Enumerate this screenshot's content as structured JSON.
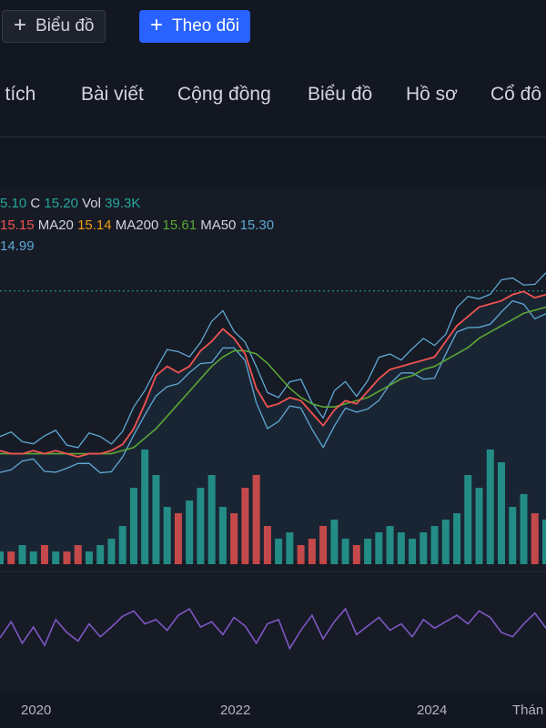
{
  "toolbar": {
    "chart_button": "Biểu đồ",
    "follow_button": "Theo dõi"
  },
  "nav": [
    "n tích",
    "Bài viết",
    "Cộng đồng",
    "Biểu đồ",
    "Hồ sơ",
    "Cổ đô"
  ],
  "legend": {
    "line1": {
      "open_tail": "5.10",
      "c_label": "C",
      "c_value": "15.20",
      "vol_label": "Vol",
      "vol_value": "39.3K"
    },
    "line2": {
      "ma_tail": "15.15",
      "ma20_label": "MA20",
      "ma20_value": "15.14",
      "ma200_label": "MA200",
      "ma200_value": "15.61",
      "ma50_label": "MA50",
      "ma50_value": "15.30"
    },
    "line3": {
      "value": "14.99"
    }
  },
  "colors": {
    "background": "#131722",
    "price_line": "#ef5350",
    "bollinger": "#5fa8d3",
    "ma200": "#5ba634",
    "volume_up": "#26a69a",
    "volume_down": "#ef5350",
    "oscillator": "#7e57c2",
    "accent": "#2962ff"
  },
  "chart_data": {
    "type": "line",
    "x_tick_labels": [
      "2020",
      "2022",
      "2024",
      "Thán"
    ],
    "series": [
      {
        "values": [
          14.9,
          14.8,
          14.8,
          14.9,
          14.8,
          14.9,
          14.8,
          14.7,
          14.8,
          14.8,
          14.9,
          15.1,
          15.6,
          16.4,
          17.3,
          17.6,
          17.4,
          17.6,
          18.1,
          18.4,
          18.8,
          18.5,
          18.0,
          16.9,
          16.3,
          16.4,
          16.6,
          16.5,
          16.1,
          15.7,
          16.2,
          16.5,
          16.4,
          16.8,
          17.2,
          17.5,
          17.6,
          17.7,
          17.8,
          17.9,
          18.4,
          18.9,
          19.2,
          19.5,
          19.6,
          19.7,
          19.9,
          20.0,
          19.8,
          19.9
        ]
      },
      {
        "name": "MA200",
        "values": [
          14.8,
          14.8,
          14.8,
          14.8,
          14.8,
          14.8,
          14.8,
          14.8,
          14.8,
          14.8,
          14.8,
          14.9,
          15.0,
          15.3,
          15.6,
          16.0,
          16.4,
          16.8,
          17.2,
          17.6,
          17.9,
          18.1,
          18.1,
          18.0,
          17.7,
          17.3,
          16.9,
          16.6,
          16.4,
          16.3,
          16.3,
          16.4,
          16.5,
          16.6,
          16.8,
          17.0,
          17.2,
          17.3,
          17.5,
          17.6,
          17.8,
          18.0,
          18.2,
          18.5,
          18.7,
          18.9,
          19.1,
          19.3,
          19.4,
          19.5
        ]
      }
    ],
    "volume": [
      2,
      2,
      3,
      2,
      3,
      2,
      2,
      3,
      2,
      3,
      4,
      6,
      12,
      18,
      14,
      9,
      8,
      10,
      12,
      14,
      9,
      8,
      12,
      14,
      6,
      4,
      5,
      3,
      4,
      6,
      7,
      4,
      3,
      4,
      5,
      6,
      5,
      4,
      5,
      6,
      7,
      8,
      14,
      12,
      18,
      16,
      9,
      11,
      8,
      7
    ],
    "oscillator": [
      45,
      60,
      40,
      55,
      38,
      62,
      50,
      42,
      58,
      46,
      55,
      65,
      70,
      58,
      62,
      52,
      66,
      72,
      55,
      60,
      48,
      64,
      56,
      40,
      58,
      62,
      35,
      52,
      66,
      44,
      60,
      72,
      48,
      56,
      64,
      52,
      58,
      46,
      62,
      54,
      60,
      66,
      58,
      70,
      64,
      50,
      46,
      58,
      68,
      54
    ],
    "ylim": [
      14,
      21
    ]
  }
}
